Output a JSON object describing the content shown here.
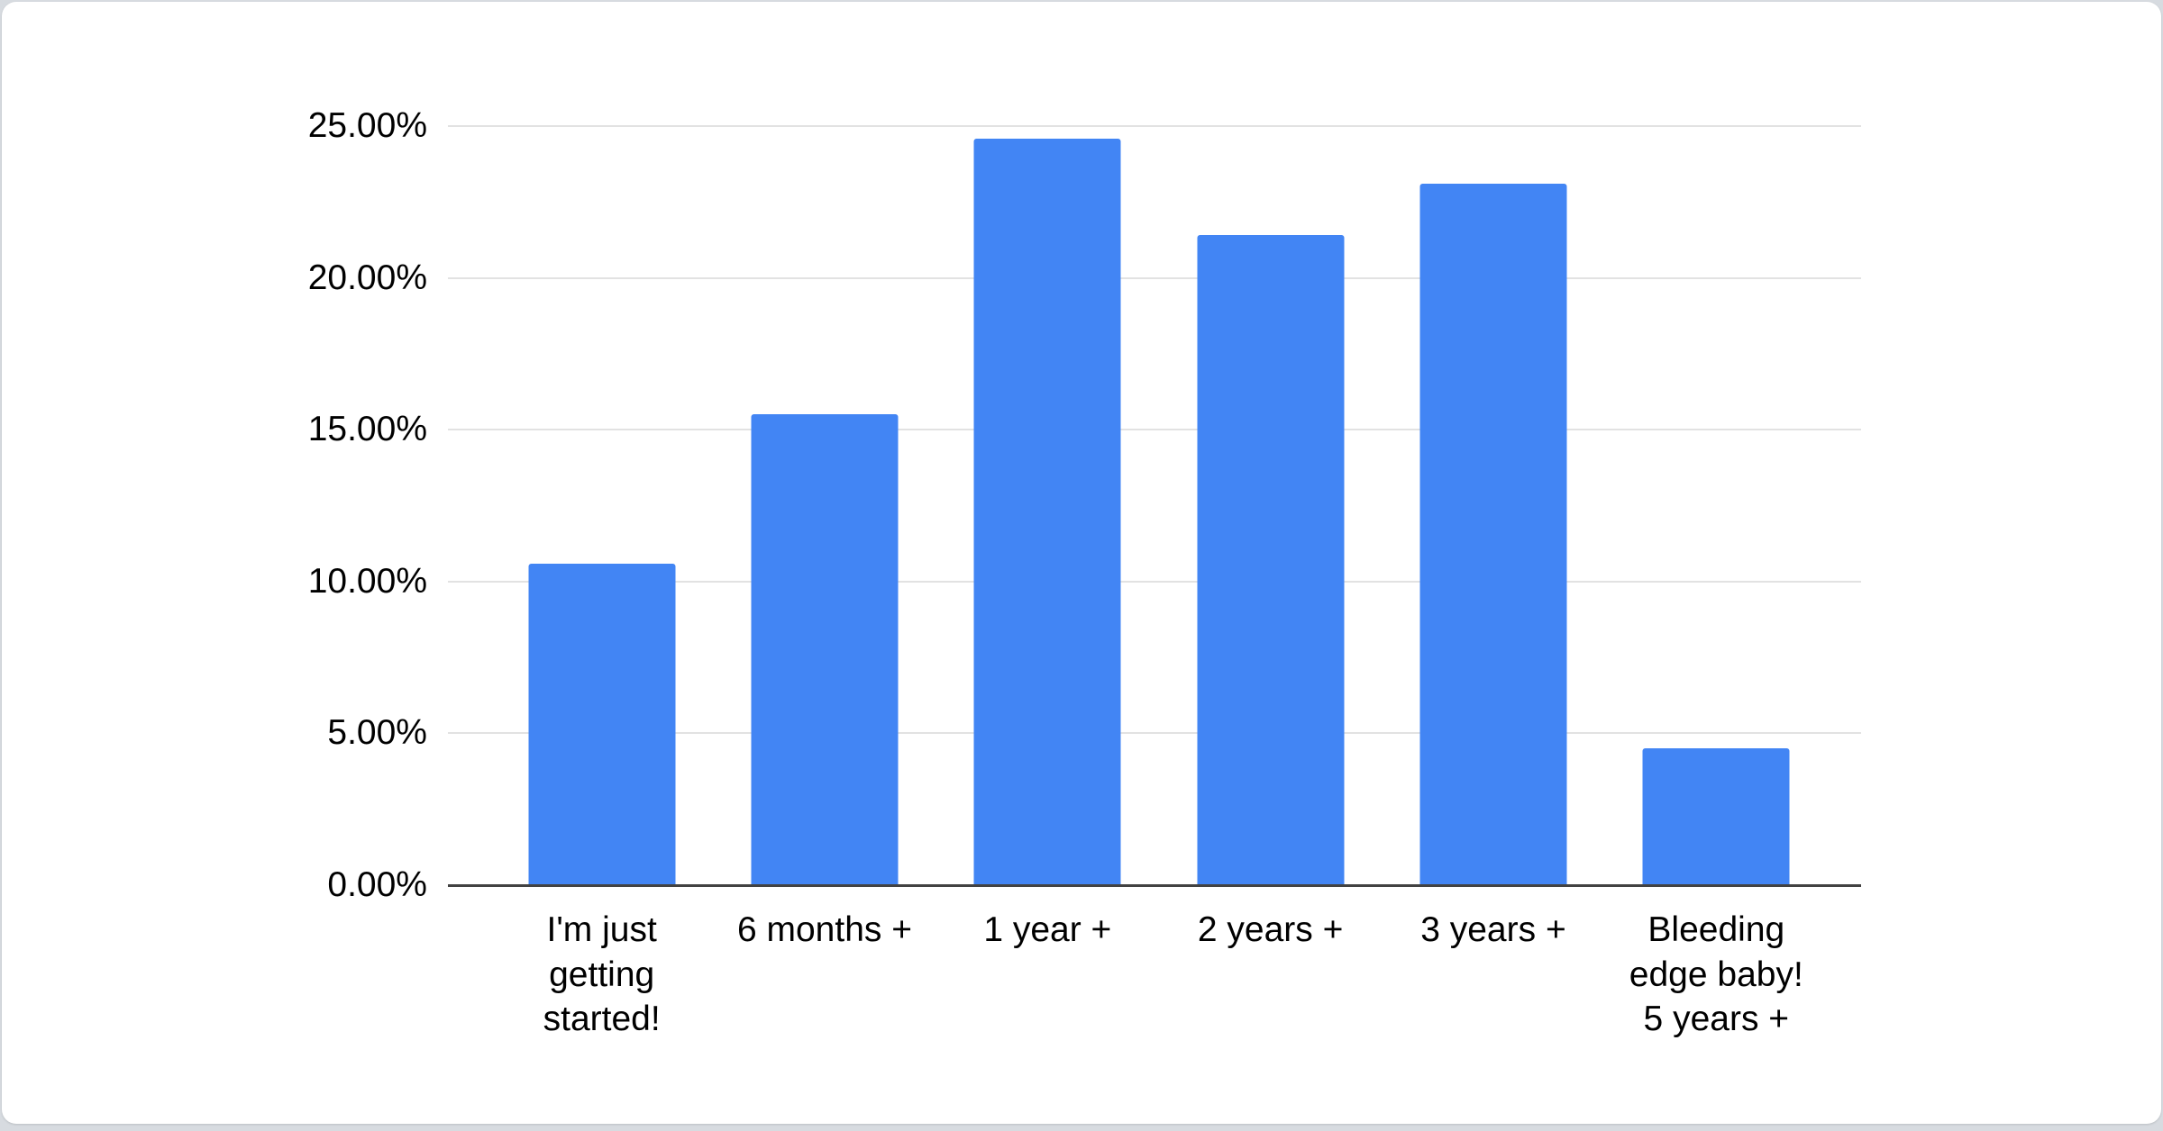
{
  "chart_data": {
    "type": "bar",
    "title": "",
    "xlabel": "",
    "ylabel": "",
    "categories": [
      "I'm just getting started!",
      "6 months +",
      "1 year +",
      "2 years +",
      "3 years +",
      "Bleeding edge baby! 5 years +"
    ],
    "categories_display": [
      "I'm just\ngetting\nstarted!",
      "6 months +",
      "1 year +",
      "2 years +",
      "3 years +",
      "Bleeding\nedge baby!\n5 years +"
    ],
    "values": [
      10.6,
      15.5,
      24.6,
      21.4,
      23.1,
      4.5
    ],
    "value_unit": "%",
    "ylim": [
      0,
      25
    ],
    "ytick_step": 5,
    "yticks": [
      {
        "value": 0,
        "label": "0.00%"
      },
      {
        "value": 5,
        "label": "5.00%"
      },
      {
        "value": 10,
        "label": "10.00%"
      },
      {
        "value": 15,
        "label": "15.00%"
      },
      {
        "value": 20,
        "label": "20.00%"
      },
      {
        "value": 25,
        "label": "25.00%"
      }
    ],
    "grid": "horizontal",
    "legend_position": "none",
    "colors": {
      "bar": "#4285f4",
      "gridline": "#e2e2e2",
      "axis_line": "#424242",
      "tick_text": "#000000",
      "card_background": "#ffffff",
      "page_background": "#d7dbe0"
    }
  }
}
